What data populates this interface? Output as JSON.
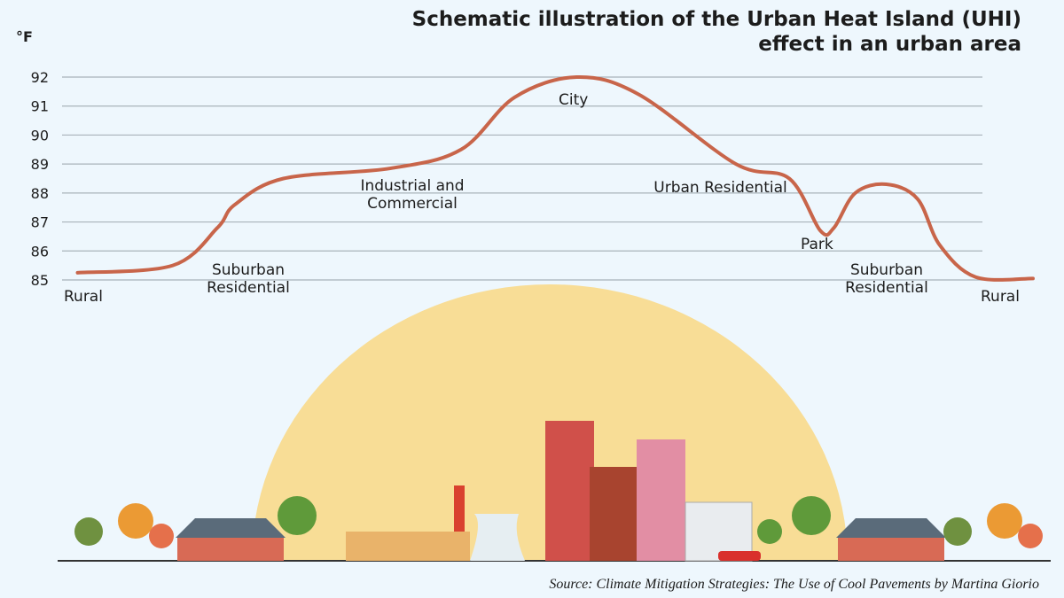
{
  "chart_data": {
    "type": "line",
    "title": "Schematic illustration of the Urban Heat Island (UHI) effect in an urban area",
    "ylabel": "°F",
    "xlabel": "",
    "ylim": [
      85,
      92
    ],
    "yticks": [
      92,
      91,
      90,
      89,
      88,
      87,
      86,
      85
    ],
    "grid": true,
    "x": [
      1.6,
      11.4,
      16,
      17.8,
      22.8,
      33.8,
      41.1,
      46.6,
      53,
      59.4,
      69.4,
      74.9,
      78.1,
      79.5,
      81.7,
      84.9,
      88.1,
      90.4,
      94.1,
      100
    ],
    "y": [
      85.25,
      85.5,
      86.8,
      87.6,
      88.5,
      88.85,
      89.5,
      91.3,
      92,
      91.4,
      89.0,
      88.5,
      86.7,
      86.8,
      88.0,
      88.3,
      87.8,
      86.2,
      85.1,
      85.05
    ],
    "annotations": [
      "Rural",
      "Suburban Residential",
      "Industrial and Commercial",
      "City",
      "Urban Residential",
      "Park",
      "Suburban Residential",
      "Rural"
    ],
    "color": "#c8654a"
  },
  "source": "Source: Climate Mitigation Strategies: The Use of Cool Pavements by Martina Giorio"
}
